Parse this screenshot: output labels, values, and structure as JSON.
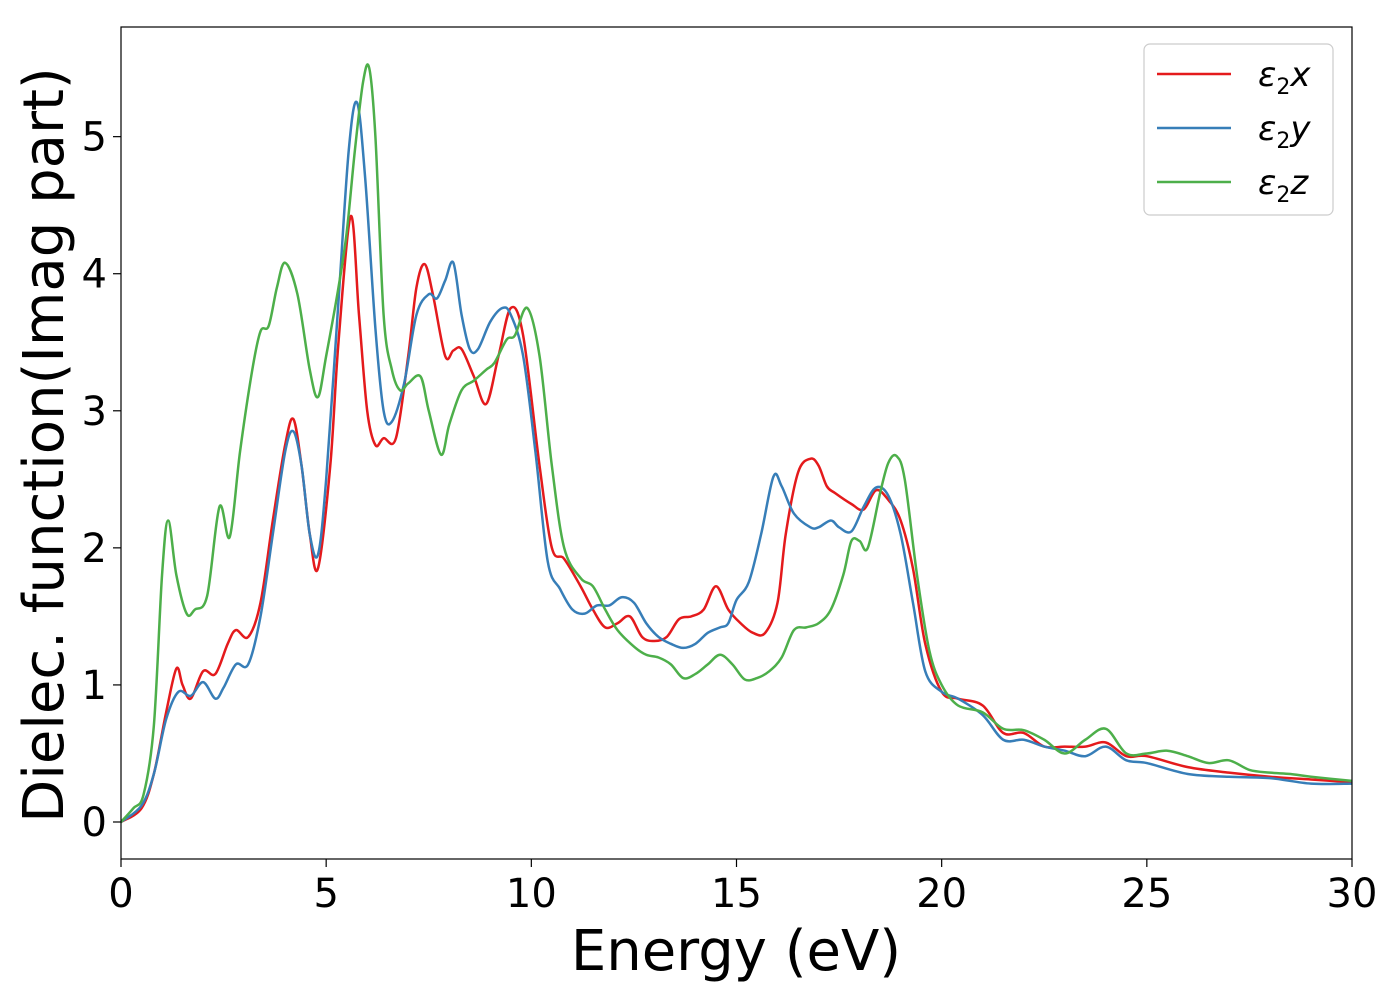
{
  "chart_data": {
    "type": "line",
    "title": "",
    "xlabel": "Energy (eV)",
    "ylabel": "Dielec. function(Imag part)",
    "xlim": [
      0,
      30
    ],
    "ylim": [
      -0.27,
      5.8
    ],
    "xticks": [
      0,
      5,
      10,
      15,
      20,
      25,
      30
    ],
    "xtick_labels": [
      "0",
      "5",
      "10",
      "15",
      "20",
      "25",
      "30"
    ],
    "yticks": [
      0,
      1,
      2,
      3,
      4,
      5
    ],
    "ytick_labels": [
      "0",
      "1",
      "2",
      "3",
      "4",
      "5"
    ],
    "grid": false,
    "legend_position": "top-right",
    "series": [
      {
        "name": "ε2x",
        "legend_main": "ε",
        "legend_sub": "2",
        "legend_var": "x",
        "color": "#e41a1c",
        "x": [
          0,
          0.5,
          0.8,
          1.1,
          1.35,
          1.5,
          1.7,
          2.0,
          2.3,
          2.6,
          2.8,
          3.1,
          3.4,
          3.7,
          4.0,
          4.2,
          4.4,
          4.6,
          4.8,
          5.1,
          5.3,
          5.6,
          5.8,
          6.0,
          6.2,
          6.4,
          6.7,
          7.0,
          7.2,
          7.4,
          7.6,
          7.9,
          8.1,
          8.3,
          8.6,
          8.9,
          9.2,
          9.5,
          9.8,
          10.2,
          10.5,
          10.8,
          11.2,
          11.5,
          11.8,
          12.1,
          12.4,
          12.7,
          13.0,
          13.3,
          13.6,
          13.9,
          14.2,
          14.5,
          14.8,
          15.1,
          15.4,
          15.7,
          16.0,
          16.2,
          16.5,
          16.8,
          17.0,
          17.2,
          17.4,
          17.8,
          18.1,
          18.4,
          18.7,
          19.0,
          19.3,
          19.6,
          20.0,
          20.4,
          21.0,
          21.5,
          22.0,
          22.5,
          23.0,
          23.5,
          24.0,
          24.5,
          25.0,
          26.0,
          27.0,
          28.0,
          29.0,
          30.0
        ],
        "y": [
          0,
          0.1,
          0.35,
          0.8,
          1.12,
          1.0,
          0.9,
          1.1,
          1.08,
          1.3,
          1.4,
          1.35,
          1.6,
          2.2,
          2.75,
          2.94,
          2.6,
          2.1,
          1.85,
          2.6,
          3.5,
          4.42,
          3.7,
          3.0,
          2.75,
          2.8,
          2.8,
          3.4,
          3.9,
          4.07,
          3.85,
          3.4,
          3.44,
          3.45,
          3.25,
          3.05,
          3.4,
          3.75,
          3.55,
          2.6,
          2.0,
          1.92,
          1.72,
          1.55,
          1.42,
          1.45,
          1.5,
          1.35,
          1.32,
          1.35,
          1.48,
          1.5,
          1.55,
          1.72,
          1.55,
          1.45,
          1.38,
          1.38,
          1.6,
          2.1,
          2.55,
          2.65,
          2.6,
          2.45,
          2.4,
          2.32,
          2.28,
          2.42,
          2.35,
          2.2,
          1.85,
          1.3,
          0.95,
          0.9,
          0.85,
          0.65,
          0.65,
          0.55,
          0.55,
          0.55,
          0.58,
          0.48,
          0.48,
          0.4,
          0.36,
          0.33,
          0.31,
          0.29
        ]
      },
      {
        "name": "ε2y",
        "legend_main": "ε",
        "legend_sub": "2",
        "legend_var": "y",
        "color": "#377eb8",
        "x": [
          0,
          0.5,
          0.8,
          1.1,
          1.4,
          1.7,
          2.0,
          2.3,
          2.5,
          2.8,
          3.1,
          3.4,
          3.7,
          4.0,
          4.2,
          4.4,
          4.6,
          4.8,
          5.0,
          5.3,
          5.55,
          5.75,
          5.95,
          6.2,
          6.4,
          6.6,
          6.9,
          7.2,
          7.5,
          7.7,
          7.9,
          8.1,
          8.3,
          8.5,
          8.7,
          9.0,
          9.3,
          9.5,
          9.8,
          10.1,
          10.4,
          10.7,
          11.0,
          11.3,
          11.6,
          11.9,
          12.2,
          12.5,
          12.8,
          13.1,
          13.4,
          13.7,
          14.0,
          14.3,
          14.6,
          14.8,
          15.0,
          15.3,
          15.6,
          15.9,
          16.1,
          16.4,
          16.8,
          17.0,
          17.3,
          17.5,
          17.8,
          18.1,
          18.4,
          18.7,
          19.0,
          19.3,
          19.6,
          20.0,
          20.4,
          21.0,
          21.5,
          22.0,
          22.5,
          23.0,
          23.5,
          24.0,
          24.5,
          25.0,
          26.0,
          27.0,
          28.0,
          29.0,
          30.0
        ],
        "y": [
          0,
          0.12,
          0.35,
          0.75,
          0.95,
          0.92,
          1.02,
          0.9,
          0.98,
          1.15,
          1.15,
          1.5,
          2.1,
          2.7,
          2.85,
          2.6,
          2.1,
          1.95,
          2.5,
          3.8,
          4.9,
          5.25,
          4.7,
          3.6,
          3.0,
          2.92,
          3.2,
          3.7,
          3.85,
          3.82,
          3.95,
          4.08,
          3.7,
          3.45,
          3.45,
          3.65,
          3.75,
          3.7,
          3.4,
          2.7,
          1.9,
          1.7,
          1.55,
          1.52,
          1.58,
          1.58,
          1.64,
          1.6,
          1.45,
          1.35,
          1.3,
          1.27,
          1.3,
          1.38,
          1.42,
          1.45,
          1.62,
          1.75,
          2.1,
          2.52,
          2.45,
          2.25,
          2.15,
          2.15,
          2.2,
          2.15,
          2.12,
          2.3,
          2.44,
          2.38,
          2.1,
          1.6,
          1.1,
          0.95,
          0.9,
          0.78,
          0.6,
          0.6,
          0.55,
          0.52,
          0.48,
          0.55,
          0.45,
          0.43,
          0.35,
          0.33,
          0.32,
          0.28,
          0.28
        ]
      },
      {
        "name": "ε2z",
        "legend_main": "ε",
        "legend_sub": "2",
        "legend_var": "z",
        "color": "#4daf4a",
        "x": [
          0,
          0.3,
          0.55,
          0.8,
          1.0,
          1.15,
          1.35,
          1.6,
          1.8,
          2.1,
          2.4,
          2.65,
          2.9,
          3.2,
          3.4,
          3.6,
          3.8,
          4.0,
          4.3,
          4.6,
          4.8,
          5.0,
          5.3,
          5.5,
          5.7,
          5.9,
          6.05,
          6.2,
          6.4,
          6.6,
          6.8,
          7.0,
          7.3,
          7.5,
          7.8,
          8.0,
          8.3,
          8.6,
          8.9,
          9.1,
          9.4,
          9.6,
          9.9,
          10.2,
          10.5,
          10.8,
          11.2,
          11.5,
          11.8,
          12.1,
          12.5,
          12.8,
          13.1,
          13.4,
          13.7,
          14.0,
          14.3,
          14.6,
          14.9,
          15.2,
          15.5,
          15.8,
          16.1,
          16.4,
          16.7,
          17.0,
          17.3,
          17.6,
          17.8,
          18.0,
          18.2,
          18.5,
          18.7,
          18.9,
          19.1,
          19.4,
          19.7,
          20.0,
          20.4,
          21.0,
          21.5,
          22.0,
          22.5,
          23.0,
          23.5,
          24.0,
          24.5,
          25.0,
          25.5,
          26.0,
          26.5,
          27.0,
          27.5,
          28.0,
          28.5,
          29.0,
          30.0
        ],
        "y": [
          0,
          0.1,
          0.2,
          0.7,
          1.8,
          2.2,
          1.8,
          1.52,
          1.55,
          1.65,
          2.3,
          2.08,
          2.7,
          3.3,
          3.58,
          3.62,
          3.9,
          4.08,
          3.85,
          3.3,
          3.1,
          3.4,
          3.9,
          4.3,
          4.9,
          5.4,
          5.5,
          5.0,
          3.7,
          3.3,
          3.15,
          3.2,
          3.25,
          3.0,
          2.68,
          2.9,
          3.15,
          3.22,
          3.3,
          3.35,
          3.52,
          3.55,
          3.75,
          3.4,
          2.6,
          2.0,
          1.78,
          1.72,
          1.55,
          1.4,
          1.28,
          1.22,
          1.2,
          1.15,
          1.05,
          1.08,
          1.15,
          1.22,
          1.15,
          1.04,
          1.05,
          1.1,
          1.2,
          1.4,
          1.42,
          1.45,
          1.55,
          1.8,
          2.05,
          2.05,
          2.0,
          2.4,
          2.62,
          2.67,
          2.5,
          1.8,
          1.25,
          1.0,
          0.85,
          0.8,
          0.68,
          0.67,
          0.6,
          0.5,
          0.6,
          0.68,
          0.5,
          0.5,
          0.52,
          0.48,
          0.43,
          0.45,
          0.38,
          0.36,
          0.35,
          0.33,
          0.3
        ]
      }
    ]
  }
}
